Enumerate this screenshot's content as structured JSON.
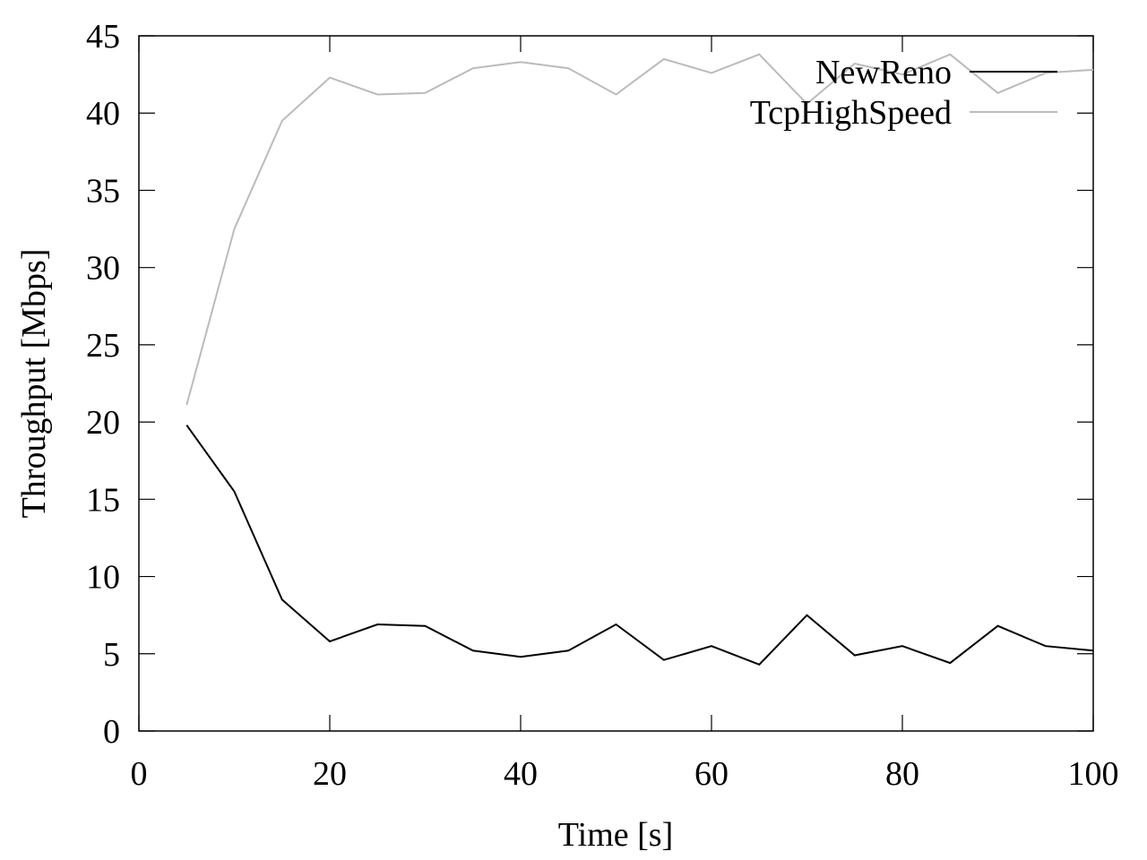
{
  "chart_data": {
    "type": "line",
    "title": "",
    "xlabel": "Time [s]",
    "ylabel": "Throughput [Mbps]",
    "xlim": [
      0,
      100
    ],
    "ylim": [
      0,
      45
    ],
    "xticks": [
      0,
      20,
      40,
      60,
      80,
      100
    ],
    "yticks": [
      0,
      5,
      10,
      15,
      20,
      25,
      30,
      35,
      40,
      45
    ],
    "grid": false,
    "legend_position": "top-right",
    "x": [
      5,
      10,
      15,
      20,
      25,
      30,
      35,
      40,
      45,
      50,
      55,
      60,
      65,
      70,
      75,
      80,
      85,
      90,
      95,
      100
    ],
    "series": [
      {
        "name": "NewReno",
        "color": "#000000",
        "values": [
          19.8,
          15.5,
          8.5,
          5.8,
          6.9,
          6.8,
          5.2,
          4.8,
          5.2,
          6.9,
          4.6,
          5.5,
          4.3,
          7.5,
          4.9,
          5.5,
          4.4,
          6.8,
          5.5,
          5.2
        ]
      },
      {
        "name": "TcpHighSpeed",
        "color": "#bbbbbb",
        "values": [
          21.1,
          32.5,
          39.5,
          42.3,
          41.2,
          41.3,
          42.9,
          43.3,
          42.9,
          41.2,
          43.5,
          42.6,
          43.8,
          40.6,
          43.2,
          42.5,
          43.8,
          41.3,
          42.6,
          42.8
        ]
      }
    ]
  }
}
